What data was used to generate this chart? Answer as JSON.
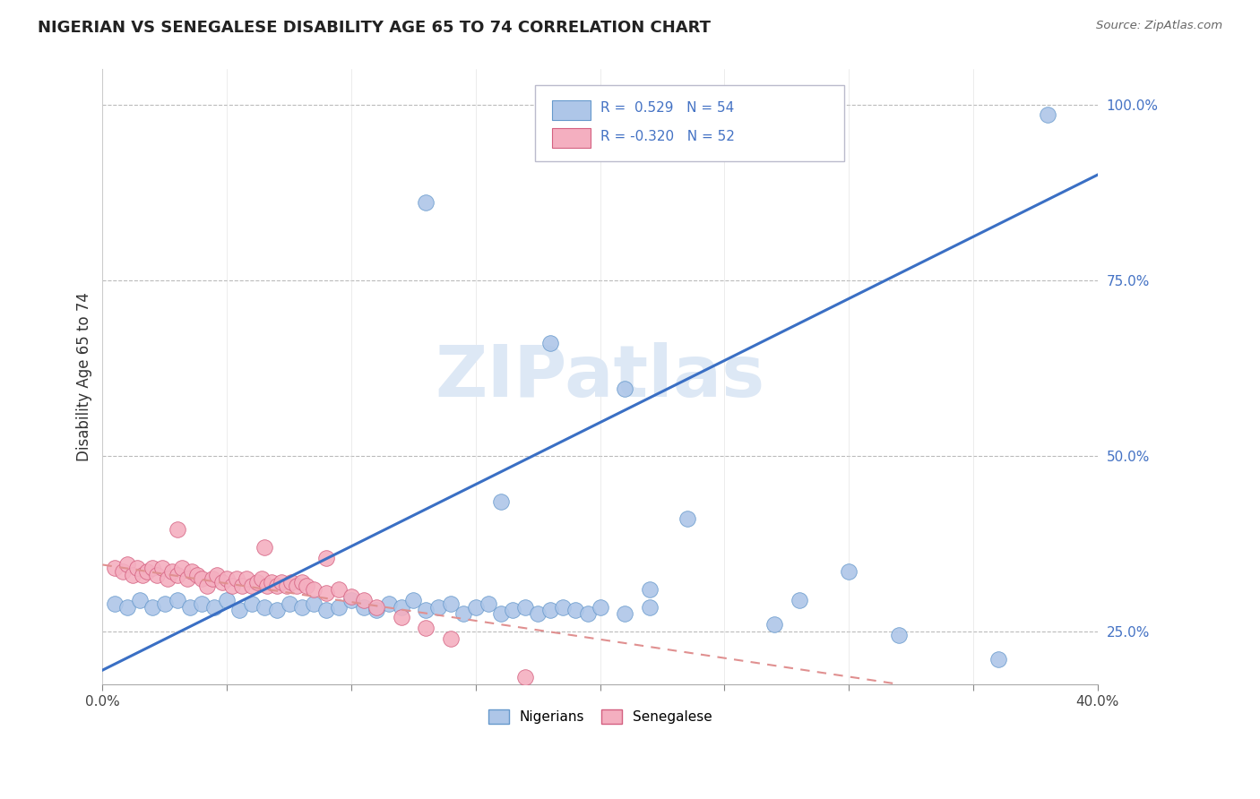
{
  "title": "NIGERIAN VS SENEGALESE DISABILITY AGE 65 TO 74 CORRELATION CHART",
  "source_text": "Source: ZipAtlas.com",
  "ylabel": "Disability Age 65 to 74",
  "xlim": [
    0.0,
    0.4
  ],
  "ylim": [
    0.175,
    1.05
  ],
  "xticks": [
    0.0,
    0.05,
    0.1,
    0.15,
    0.2,
    0.25,
    0.3,
    0.35,
    0.4
  ],
  "yticks": [
    0.25,
    0.5,
    0.75,
    1.0
  ],
  "yticklabels": [
    "25.0%",
    "50.0%",
    "75.0%",
    "100.0%"
  ],
  "blue_color": "#aec6e8",
  "blue_edge_color": "#6699cc",
  "pink_color": "#f4afc0",
  "pink_edge_color": "#d46080",
  "blue_line_color": "#3a6fc4",
  "pink_line_color": "#e09090",
  "watermark_color": "#dde8f5",
  "blue_scatter_x": [
    0.13,
    0.38,
    0.18,
    0.21,
    0.16,
    0.235,
    0.3,
    0.22,
    0.28,
    0.36,
    0.005,
    0.01,
    0.015,
    0.02,
    0.025,
    0.03,
    0.035,
    0.04,
    0.045,
    0.05,
    0.055,
    0.06,
    0.065,
    0.07,
    0.075,
    0.08,
    0.085,
    0.09,
    0.095,
    0.1,
    0.105,
    0.11,
    0.115,
    0.12,
    0.125,
    0.13,
    0.135,
    0.14,
    0.145,
    0.15,
    0.155,
    0.16,
    0.165,
    0.17,
    0.175,
    0.18,
    0.185,
    0.19,
    0.195,
    0.2,
    0.21,
    0.22,
    0.27,
    0.32
  ],
  "blue_scatter_y": [
    0.86,
    0.985,
    0.66,
    0.595,
    0.435,
    0.41,
    0.335,
    0.31,
    0.295,
    0.21,
    0.29,
    0.285,
    0.295,
    0.285,
    0.29,
    0.295,
    0.285,
    0.29,
    0.285,
    0.295,
    0.28,
    0.29,
    0.285,
    0.28,
    0.29,
    0.285,
    0.29,
    0.28,
    0.285,
    0.295,
    0.285,
    0.28,
    0.29,
    0.285,
    0.295,
    0.28,
    0.285,
    0.29,
    0.275,
    0.285,
    0.29,
    0.275,
    0.28,
    0.285,
    0.275,
    0.28,
    0.285,
    0.28,
    0.275,
    0.285,
    0.275,
    0.285,
    0.26,
    0.245
  ],
  "pink_scatter_x": [
    0.005,
    0.008,
    0.01,
    0.012,
    0.014,
    0.016,
    0.018,
    0.02,
    0.022,
    0.024,
    0.026,
    0.028,
    0.03,
    0.032,
    0.034,
    0.036,
    0.038,
    0.04,
    0.042,
    0.044,
    0.046,
    0.048,
    0.05,
    0.052,
    0.054,
    0.056,
    0.058,
    0.06,
    0.062,
    0.064,
    0.066,
    0.068,
    0.07,
    0.072,
    0.074,
    0.076,
    0.078,
    0.08,
    0.082,
    0.085,
    0.09,
    0.095,
    0.1,
    0.105,
    0.11,
    0.12,
    0.13,
    0.14,
    0.17,
    0.03,
    0.065,
    0.09
  ],
  "pink_scatter_y": [
    0.34,
    0.335,
    0.345,
    0.33,
    0.34,
    0.33,
    0.335,
    0.34,
    0.33,
    0.34,
    0.325,
    0.335,
    0.33,
    0.34,
    0.325,
    0.335,
    0.33,
    0.325,
    0.315,
    0.325,
    0.33,
    0.32,
    0.325,
    0.315,
    0.325,
    0.315,
    0.325,
    0.315,
    0.32,
    0.325,
    0.315,
    0.32,
    0.315,
    0.32,
    0.315,
    0.32,
    0.315,
    0.32,
    0.315,
    0.31,
    0.305,
    0.31,
    0.3,
    0.295,
    0.285,
    0.27,
    0.255,
    0.24,
    0.185,
    0.395,
    0.37,
    0.355
  ],
  "blue_trend_x0": 0.0,
  "blue_trend_y0": 0.195,
  "blue_trend_x1": 0.4,
  "blue_trend_y1": 0.9,
  "pink_trend_x0": 0.0,
  "pink_trend_y0": 0.345,
  "pink_trend_x1": 0.32,
  "pink_trend_y1": 0.175
}
